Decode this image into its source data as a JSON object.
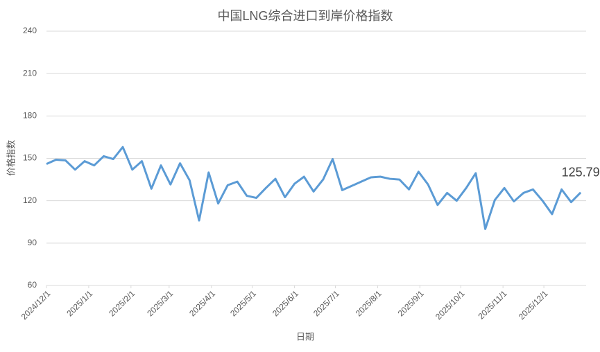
{
  "chart_data": {
    "type": "line",
    "title": "中国LNG综合进口到岸价格指数",
    "x_label": "日期",
    "y_label": "价格指数",
    "x": [
      "2024/12/1",
      "2024/12/8",
      "2024/12/15",
      "2024/12/22",
      "2024/12/29",
      "2025/1/5",
      "2025/1/12",
      "2025/1/19",
      "2025/1/26",
      "2025/2/2",
      "2025/2/9",
      "2025/2/16",
      "2025/2/23",
      "2025/3/2",
      "2025/3/9",
      "2025/3/16",
      "2025/3/23",
      "2025/3/30",
      "2025/4/6",
      "2025/4/13",
      "2025/4/20",
      "2025/4/27",
      "2025/5/4",
      "2025/5/11",
      "2025/5/18",
      "2025/5/25",
      "2025/6/1",
      "2025/6/8",
      "2025/6/15",
      "2025/6/22",
      "2025/6/29",
      "2025/7/6",
      "2025/7/13",
      "2025/7/20",
      "2025/7/27",
      "2025/8/3",
      "2025/8/10",
      "2025/8/17",
      "2025/8/24",
      "2025/8/31",
      "2025/9/7",
      "2025/9/14",
      "2025/9/21",
      "2025/9/28",
      "2025/10/5",
      "2025/10/12",
      "2025/10/19",
      "2025/10/26",
      "2025/11/2",
      "2025/11/9",
      "2025/11/16",
      "2025/11/23",
      "2025/11/30",
      "2025/12/7",
      "2025/12/14",
      "2025/12/21",
      "2025/12/28"
    ],
    "values": [
      146,
      149,
      148.5,
      142,
      148,
      145,
      151.5,
      149.5,
      158,
      142,
      148,
      128.5,
      145,
      131.5,
      146.5,
      134.5,
      106,
      140,
      118,
      131,
      133.5,
      123.5,
      122,
      129,
      135.5,
      122.5,
      132,
      137,
      126.5,
      135,
      149.5,
      127.5,
      130.5,
      133.5,
      136.5,
      137,
      135.5,
      135,
      128,
      140.5,
      131.5,
      117,
      125.5,
      120,
      129,
      139.5,
      100,
      120.5,
      129,
      119.5,
      125.5,
      128,
      120,
      110.5,
      128,
      119,
      125.79
    ],
    "color": "#5b9bd5",
    "xlim": [
      "2024/12/1",
      "2026/1/1"
    ],
    "xticks": [
      "2024/12/1",
      "2025/1/1",
      "2025/2/1",
      "2025/3/1",
      "2025/4/1",
      "2025/5/1",
      "2025/6/1",
      "2025/7/1",
      "2025/8/1",
      "2025/9/1",
      "2025/10/1",
      "2025/11/1",
      "2025/12/1"
    ],
    "ylim": [
      60,
      240
    ],
    "yticks": [
      60,
      90,
      120,
      150,
      180,
      210,
      240
    ],
    "grid": true
  }
}
